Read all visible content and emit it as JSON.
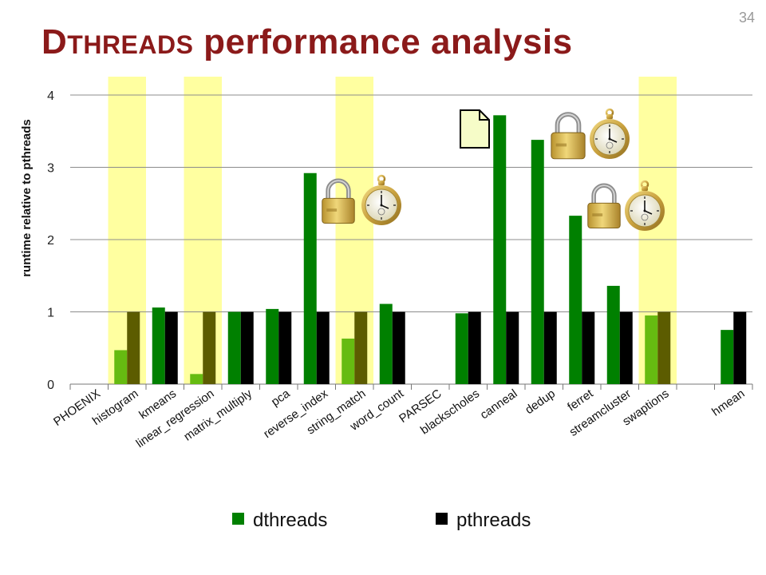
{
  "slide": {
    "title_initial": "D",
    "title_smallcaps": "THREADS",
    "title_rest": " performance analysis",
    "slide_number": "34"
  },
  "chart_data": {
    "type": "bar",
    "title": "",
    "xlabel": "",
    "ylabel": "runtime relative to pthreads",
    "ylim": [
      0,
      4.2
    ],
    "yticks": [
      "0",
      "1",
      "2",
      "3",
      "4"
    ],
    "grid": true,
    "legend_position": "bottom",
    "categories": [
      "PHOENIX",
      "histogram",
      "kmeans",
      "linear_regression",
      "matrix_multiply",
      "pca",
      "reverse_index",
      "string_match",
      "word_count",
      "PARSEC",
      "blackscholes",
      "canneal",
      "dedup",
      "ferret",
      "streamcluster",
      "swaptions",
      "",
      "hmean"
    ],
    "highlighted_categories": [
      "histogram",
      "linear_regression",
      "string_match",
      "swaptions"
    ],
    "series": [
      {
        "name": "dthreads",
        "values": [
          null,
          0.47,
          1.06,
          0.14,
          1.0,
          1.04,
          2.92,
          0.63,
          1.11,
          null,
          0.98,
          3.72,
          3.38,
          2.33,
          1.36,
          0.95,
          null,
          0.75
        ]
      },
      {
        "name": "pthreads",
        "values": [
          null,
          1,
          1,
          1,
          1,
          1,
          1,
          1,
          1,
          null,
          1,
          1,
          1,
          1,
          1,
          1,
          null,
          1
        ]
      }
    ],
    "colors": {
      "dthreads": "#008000",
      "dthreads_highlight": "#66BB11",
      "pthreads": "#000000",
      "pthreads_highlight": "#5C5C00",
      "highlight_band": "#FFFFA0",
      "gridline": "#8c8c8c",
      "title": "#8B1A1A"
    },
    "annotations": [
      {
        "icons": [
          "lock-icon",
          "stopwatch-icon"
        ],
        "near": "string_match"
      },
      {
        "icons": [
          "document-icon"
        ],
        "near": "canneal"
      },
      {
        "icons": [
          "lock-icon",
          "stopwatch-icon"
        ],
        "near": "dedup"
      },
      {
        "icons": [
          "lock-icon",
          "stopwatch-icon"
        ],
        "near": "streamcluster"
      }
    ]
  }
}
